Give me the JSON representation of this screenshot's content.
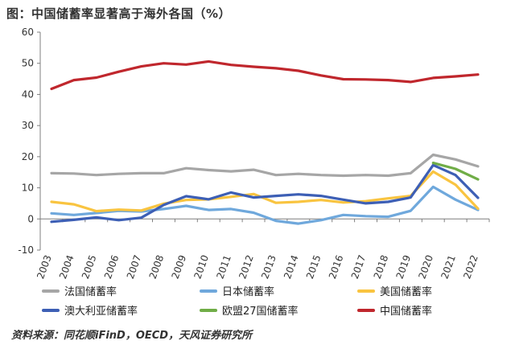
{
  "title": "图：中国储蓄率显著高于海外各国（%）",
  "source": "资料来源：同花顺iFinD，OECD，天风证券研究所",
  "chart_data": {
    "type": "line",
    "title": "图：中国储蓄率显著高于海外各国（%）",
    "xlabel": "",
    "ylabel": "",
    "ylim": [
      -10,
      60
    ],
    "yticks": [
      -10,
      0,
      10,
      20,
      30,
      40,
      50,
      60
    ],
    "grid": false,
    "legend_position": "bottom",
    "x": [
      "2003",
      "2004",
      "2005",
      "2006",
      "2007",
      "2008",
      "2009",
      "2010",
      "2011",
      "2012",
      "2013",
      "2014",
      "2015",
      "2016",
      "2017",
      "2018",
      "2019",
      "2020",
      "2021",
      "2022"
    ],
    "series": [
      {
        "name": "法国储蓄率",
        "color": "#a6a6a6",
        "values": [
          14.7,
          14.6,
          14.1,
          14.5,
          14.7,
          14.7,
          16.3,
          15.7,
          15.3,
          15.8,
          14.1,
          14.5,
          14.1,
          13.9,
          14.1,
          13.9,
          14.7,
          20.6,
          19.1,
          16.9
        ]
      },
      {
        "name": "日本储蓄率",
        "color": "#6fa8dc",
        "values": [
          1.8,
          1.3,
          1.9,
          2.6,
          2.4,
          3.2,
          4.2,
          2.9,
          3.2,
          2.0,
          -0.6,
          -1.5,
          -0.4,
          1.3,
          0.9,
          0.7,
          2.6,
          10.3,
          6.2,
          2.9
        ]
      },
      {
        "name": "美国储蓄率",
        "color": "#f9c440",
        "values": [
          5.5,
          4.7,
          2.5,
          3.0,
          2.7,
          4.9,
          6.1,
          6.3,
          7.1,
          8.0,
          5.2,
          5.5,
          6.1,
          5.3,
          5.7,
          6.6,
          7.4,
          15.2,
          11.0,
          3.3
        ]
      },
      {
        "name": "澳大利亚储蓄率",
        "color": "#3d5fb5",
        "values": [
          -0.9,
          -0.3,
          0.5,
          -0.4,
          0.4,
          4.5,
          7.3,
          6.3,
          8.5,
          6.9,
          7.4,
          7.9,
          7.4,
          6.2,
          5.0,
          5.5,
          6.9,
          17.3,
          14.1,
          6.8
        ]
      },
      {
        "name": "欧盟27国储蓄率",
        "color": "#70ad47",
        "values": [
          null,
          null,
          null,
          null,
          null,
          null,
          null,
          null,
          null,
          null,
          null,
          null,
          null,
          null,
          null,
          null,
          null,
          18.0,
          16.1,
          12.7
        ]
      },
      {
        "name": "中国储蓄率",
        "color": "#c0272d",
        "values": [
          41.8,
          44.6,
          45.4,
          47.3,
          49.0,
          50.0,
          49.6,
          50.6,
          49.5,
          48.9,
          48.4,
          47.6,
          46.1,
          44.9,
          44.8,
          44.6,
          44.0,
          45.3,
          45.8,
          46.4
        ]
      }
    ]
  }
}
